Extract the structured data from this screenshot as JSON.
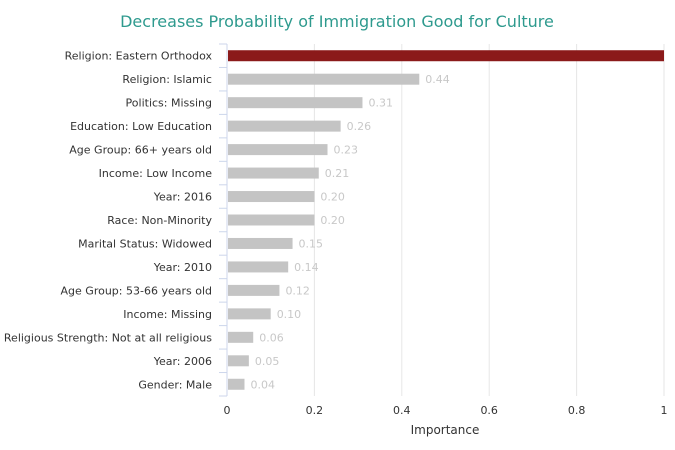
{
  "chart_data": {
    "type": "bar",
    "orientation": "horizontal",
    "title": "Decreases Probability of Immigration Good for Culture",
    "xlabel": "Importance",
    "xlim": [
      0,
      1
    ],
    "xticks": [
      "0",
      "0.2",
      "0.4",
      "0.6",
      "0.8",
      "1"
    ],
    "categories": [
      "Religion: Eastern Orthodox",
      "Religion: Islamic",
      "Politics: Missing",
      "Education: Low Education",
      "Age Group: 66+ years old",
      "Income: Low Income",
      "Year: 2016",
      "Race: Non-Minority",
      "Marital Status: Widowed",
      "Year: 2010",
      "Age Group: 53-66 years old",
      "Income: Missing",
      "Religious Strength: Not at all religious",
      "Year: 2006",
      "Gender: Male"
    ],
    "values": [
      1.0,
      0.44,
      0.31,
      0.26,
      0.23,
      0.21,
      0.2,
      0.2,
      0.15,
      0.14,
      0.12,
      0.1,
      0.06,
      0.05,
      0.04
    ],
    "value_labels": [
      "",
      "0.44",
      "0.31",
      "0.26",
      "0.23",
      "0.21",
      "0.20",
      "0.20",
      "0.15",
      "0.14",
      "0.12",
      "0.10",
      "0.06",
      "0.05",
      "0.04"
    ],
    "grid": true,
    "legend": "none",
    "colors": {
      "highlight": "#8b1a1a",
      "bar": "#c4c4c4",
      "title": "#2e9a8e"
    }
  }
}
